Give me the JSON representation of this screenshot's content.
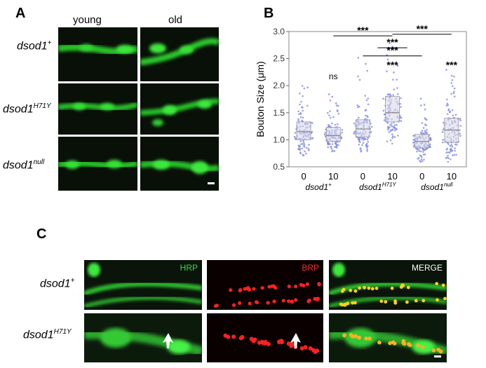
{
  "panels": {
    "a": "A",
    "b": "B",
    "c": "C"
  },
  "panel_a": {
    "col_young": "young",
    "col_old": "old",
    "rows": [
      {
        "base": "dsod1",
        "sup": "+"
      },
      {
        "base": "dsod1",
        "sup": "H71Y"
      },
      {
        "base": "dsod1",
        "sup": "null"
      }
    ]
  },
  "panel_c": {
    "rows": [
      {
        "base": "dsod1",
        "sup": "+"
      },
      {
        "base": "dsod1",
        "sup": "H71Y"
      }
    ],
    "channels": [
      "HRP",
      "BRP",
      "MERGE"
    ],
    "channel_colors": [
      "#3ddc3d",
      "#ff2a2a",
      "#ffffff"
    ]
  },
  "chart_data": {
    "type": "box-scatter",
    "ylabel": "Bouton Size (μm)",
    "ylim": [
      0.5,
      3.0
    ],
    "yticks": [
      "0.5",
      "1.0",
      "1.5",
      "2.0",
      "2.5",
      "3.0"
    ],
    "x_tick_labels": [
      "0",
      "10",
      "0",
      "10",
      "0",
      "10"
    ],
    "groups": [
      {
        "base": "dsod1",
        "sup": "+"
      },
      {
        "base": "dsod1",
        "sup": "H71Y"
      },
      {
        "base": "dsod1",
        "sup": "null"
      }
    ],
    "boxes": [
      {
        "q1": 1.0,
        "median": 1.15,
        "q3": 1.33,
        "min": 0.6,
        "max": 2.07
      },
      {
        "q1": 0.97,
        "median": 1.08,
        "q3": 1.23,
        "min": 0.72,
        "max": 1.85
      },
      {
        "q1": 1.05,
        "median": 1.2,
        "q3": 1.37,
        "min": 0.75,
        "max": 2.62
      },
      {
        "q1": 1.33,
        "median": 1.5,
        "q3": 1.8,
        "min": 0.85,
        "max": 2.85
      },
      {
        "q1": 0.85,
        "median": 0.97,
        "q3": 1.1,
        "min": 0.55,
        "max": 1.8
      },
      {
        "q1": 0.95,
        "median": 1.18,
        "q3": 1.4,
        "min": 0.58,
        "max": 2.32
      }
    ],
    "annotations": [
      {
        "text": "ns",
        "x_index": 1,
        "y": 2.12
      },
      {
        "text": "***",
        "x_index": 3,
        "y": 2.32
      },
      {
        "text": "***",
        "x_index": 5,
        "y": 2.32
      }
    ],
    "brackets": [
      {
        "from": 1,
        "to": 3,
        "y": 2.92,
        "text": "***"
      },
      {
        "from": 3,
        "to": 5,
        "y": 2.95,
        "text": "***"
      },
      {
        "from": 2,
        "to": 4,
        "y": 2.55,
        "text": "***"
      },
      {
        "from": 2.5,
        "to": 3.5,
        "y": 2.7,
        "text": "***"
      }
    ],
    "point_color": "#7b83e6",
    "box_color": "#d9d9e6"
  }
}
